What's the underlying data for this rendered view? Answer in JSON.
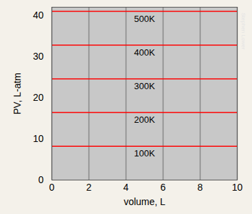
{
  "chart_data": {
    "type": "line",
    "x_label": "volume, L",
    "y_label": "PV, L-atm",
    "x": [
      0,
      10
    ],
    "series": [
      {
        "name": "100K",
        "color": "#ff0000",
        "values": [
          8.2,
          8.2
        ]
      },
      {
        "name": "200K",
        "color": "#ff0000",
        "values": [
          16.4,
          16.4
        ]
      },
      {
        "name": "300K",
        "color": "#ff0000",
        "values": [
          24.6,
          24.6
        ]
      },
      {
        "name": "400K",
        "color": "#ff0000",
        "values": [
          32.8,
          32.8
        ]
      },
      {
        "name": "500K",
        "color": "#ff0000",
        "values": [
          41.0,
          41.0
        ]
      }
    ],
    "xlim": [
      0,
      10
    ],
    "xticks": [
      0,
      2,
      4,
      6,
      8,
      10
    ],
    "ylim": [
      0,
      42
    ],
    "yticks": [
      0,
      10,
      20,
      30,
      40
    ],
    "grid": "x",
    "credit": "Stephen Lower"
  }
}
